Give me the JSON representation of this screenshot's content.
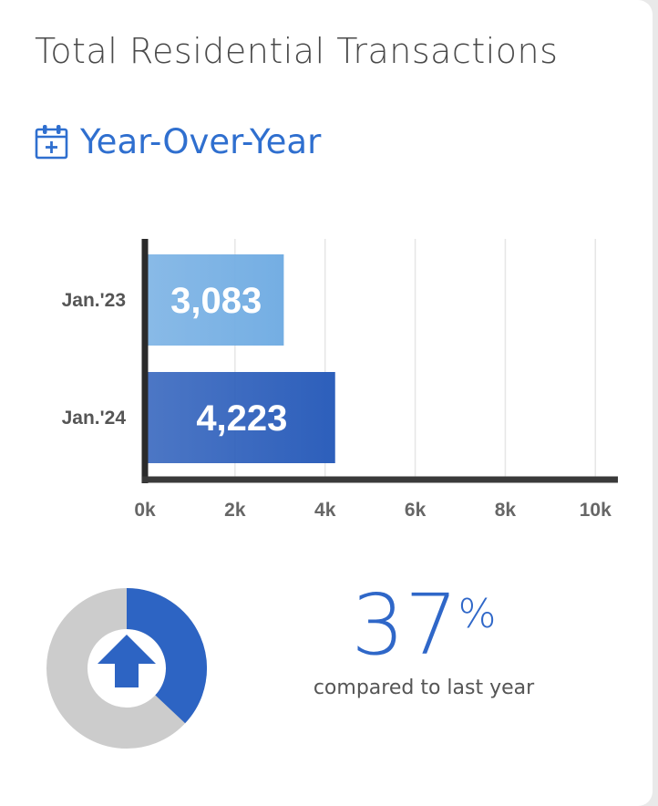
{
  "title": "Total Residential Transactions",
  "subtitle": "Year-Over-Year",
  "icon": "calendar-plus-icon",
  "chart_data": {
    "type": "bar",
    "orientation": "horizontal",
    "categories": [
      "Jan.'23",
      "Jan.'24"
    ],
    "values": [
      3083,
      4223
    ],
    "value_labels": [
      "3,083",
      "4,223"
    ],
    "colors": [
      "#74aee3",
      "#2d5fbb"
    ],
    "xlim": [
      0,
      10500
    ],
    "xticks": [
      0,
      2000,
      4000,
      6000,
      8000,
      10000
    ],
    "xtick_labels": [
      "0k",
      "2k",
      "4k",
      "6k",
      "8k",
      "10k"
    ],
    "grid": true,
    "legend": "none"
  },
  "change": {
    "percent_value": "37",
    "percent_symbol": "%",
    "caption": "compared to last year",
    "fraction": 0.37,
    "direction": "up",
    "icon": "arrow-up-icon",
    "colors": {
      "fill": "#2d64c3",
      "track": "#cccccc"
    }
  }
}
